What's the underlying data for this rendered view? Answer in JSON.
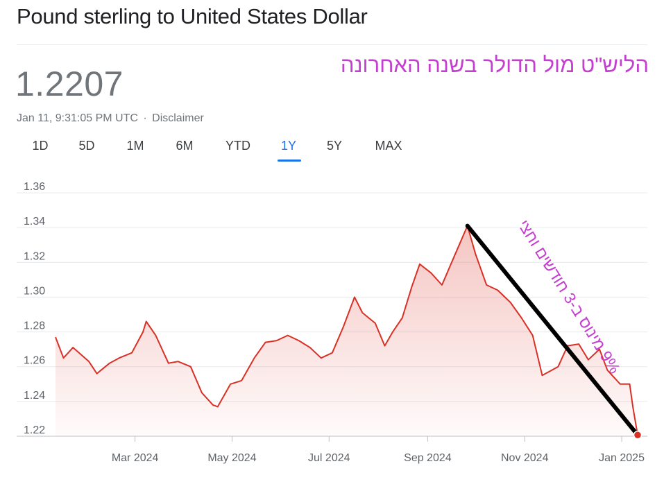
{
  "header": {
    "title": "Pound sterling to United States Dollar",
    "price": "1.2207",
    "timestamp": "Jan 11, 9:31:05 PM UTC",
    "separator": "·",
    "disclaimer": "Disclaimer"
  },
  "tabs": [
    {
      "label": "1D",
      "active": false
    },
    {
      "label": "5D",
      "active": false
    },
    {
      "label": "1M",
      "active": false
    },
    {
      "label": "6M",
      "active": false
    },
    {
      "label": "YTD",
      "active": false
    },
    {
      "label": "1Y",
      "active": true
    },
    {
      "label": "5Y",
      "active": false
    },
    {
      "label": "MAX",
      "active": false
    }
  ],
  "annotations": {
    "title": "הליש\"ט מול הדולר בשנה האחרונה",
    "slope": "9% מינוס ב-3 חודשים וחצי"
  },
  "colors": {
    "line": "#d93025",
    "accent": "#1a73e8",
    "annotation": "#c43fcf",
    "trendline": "#000000"
  },
  "chart_data": {
    "type": "area",
    "title": "",
    "xlabel": "",
    "ylabel": "",
    "ylim": [
      1.22,
      1.36
    ],
    "yticks": [
      "1.36",
      "1.34",
      "1.32",
      "1.30",
      "1.28",
      "1.26",
      "1.24",
      "1.22"
    ],
    "xlim": [
      "2024-01-11",
      "2025-01-11"
    ],
    "xticks": [
      {
        "label": "Mar 2024",
        "date": "2024-03-01"
      },
      {
        "label": "May 2024",
        "date": "2024-05-01"
      },
      {
        "label": "Jul 2024",
        "date": "2024-07-01"
      },
      {
        "label": "Sep 2024",
        "date": "2024-09-01"
      },
      {
        "label": "Nov 2024",
        "date": "2024-11-01"
      },
      {
        "label": "Jan 2025",
        "date": "2025-01-01"
      }
    ],
    "grid": true,
    "series": [
      {
        "x": [
          "2024-01-11",
          "2024-01-16",
          "2024-01-22",
          "2024-02-01",
          "2024-02-06",
          "2024-02-14",
          "2024-02-20",
          "2024-02-28",
          "2024-03-06",
          "2024-03-08",
          "2024-03-14",
          "2024-03-22",
          "2024-03-28",
          "2024-04-05",
          "2024-04-12",
          "2024-04-19",
          "2024-04-22",
          "2024-04-30",
          "2024-05-07",
          "2024-05-15",
          "2024-05-22",
          "2024-05-29",
          "2024-06-05",
          "2024-06-12",
          "2024-06-19",
          "2024-06-26",
          "2024-07-03",
          "2024-07-10",
          "2024-07-17",
          "2024-07-22",
          "2024-07-30",
          "2024-08-05",
          "2024-08-10",
          "2024-08-16",
          "2024-08-22",
          "2024-08-27",
          "2024-09-03",
          "2024-09-10",
          "2024-09-17",
          "2024-09-26",
          "2024-10-01",
          "2024-10-08",
          "2024-10-15",
          "2024-10-23",
          "2024-10-30",
          "2024-11-06",
          "2024-11-12",
          "2024-11-22",
          "2024-11-28",
          "2024-12-05",
          "2024-12-11",
          "2024-12-18",
          "2024-12-23",
          "2024-12-31",
          "2025-01-06",
          "2025-01-08",
          "2025-01-11"
        ],
        "values": [
          1.277,
          1.265,
          1.271,
          1.263,
          1.256,
          1.262,
          1.265,
          1.268,
          1.28,
          1.286,
          1.278,
          1.262,
          1.263,
          1.26,
          1.245,
          1.238,
          1.237,
          1.25,
          1.252,
          1.265,
          1.274,
          1.275,
          1.278,
          1.275,
          1.271,
          1.265,
          1.268,
          1.283,
          1.3,
          1.291,
          1.285,
          1.272,
          1.28,
          1.288,
          1.306,
          1.319,
          1.314,
          1.307,
          1.322,
          1.341,
          1.325,
          1.307,
          1.304,
          1.297,
          1.288,
          1.278,
          1.255,
          1.26,
          1.272,
          1.273,
          1.264,
          1.27,
          1.258,
          1.25,
          1.25,
          1.237,
          1.2207
        ]
      }
    ],
    "trendline": {
      "from": {
        "x": "2024-09-26",
        "y": 1.341
      },
      "to": {
        "x": "2025-01-11",
        "y": 1.2207
      }
    },
    "end_marker": {
      "x": "2025-01-11",
      "y": 1.2207
    }
  }
}
